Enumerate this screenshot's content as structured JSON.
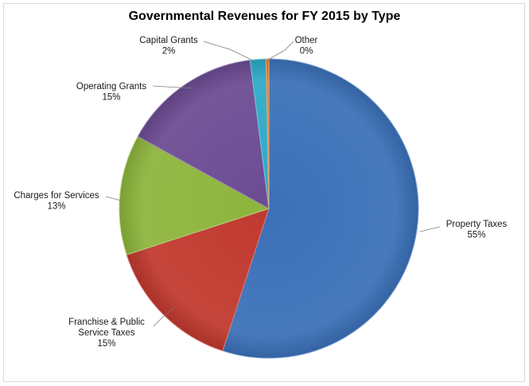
{
  "chart_data": {
    "type": "pie",
    "title": "Governmental Revenues for FY 2015 by Type",
    "slices": [
      {
        "name": "Property Taxes",
        "value": 55,
        "percent_label": "55%",
        "color": "#3b70b8"
      },
      {
        "name": "Franchise & Public Service Taxes",
        "value": 15,
        "percent_label": "15%",
        "color": "#c0392f"
      },
      {
        "name": "Charges for Services",
        "value": 13,
        "percent_label": "13%",
        "color": "#8db53c"
      },
      {
        "name": "Operating Grants",
        "value": 15,
        "percent_label": "15%",
        "color": "#6c4b93"
      },
      {
        "name": "Capital Grants",
        "value": 1.7,
        "percent_label": "2%",
        "color": "#2da9c8"
      },
      {
        "name": "Other",
        "value": 0.3,
        "percent_label": "0%",
        "color": "#e07b25"
      }
    ],
    "label_lines": {
      "property": [
        "Property Taxes",
        "55%"
      ],
      "franchise": [
        "Franchise & Public",
        "Service Taxes",
        "15%"
      ],
      "charges": [
        "Charges for Services",
        "13%"
      ],
      "operating": [
        "Operating Grants",
        "15%"
      ],
      "capital": [
        "Capital Grants",
        "2%"
      ],
      "other": [
        "Other",
        "0%"
      ]
    }
  }
}
